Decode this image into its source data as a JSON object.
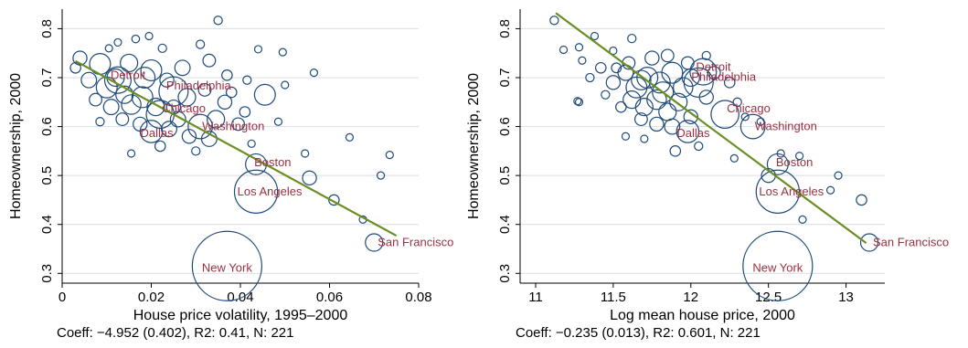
{
  "colors": {
    "bubble": "#1f4a7a",
    "fit_line": "#6b8e23",
    "city_label": "#9b3040",
    "grid": "#d9dee6"
  },
  "chart_data": [
    {
      "type": "scatter",
      "xlabel": "House price volatility, 1995–2000",
      "ylabel": "Homeownership, 2000",
      "xlim": [
        0,
        0.08
      ],
      "ylim": [
        0.28,
        0.84
      ],
      "xticks": [
        "0",
        "0.02",
        "0.04",
        "0.06",
        "0.08"
      ],
      "yticks": [
        "0.3",
        "0.4",
        "0.5",
        "0.6",
        "0.7",
        "0.8"
      ],
      "grid": "horizontal",
      "caption": "Coeff: −4.952 (0.402), R2: 0.41, N: 221",
      "fit_line": {
        "x": [
          0.003,
          0.075
        ],
        "y": [
          0.734,
          0.377
        ]
      },
      "labeled_points": [
        {
          "label": "New York",
          "x": 0.037,
          "y": 0.315,
          "size": 1.0
        },
        {
          "label": "Los Angeles",
          "x": 0.0435,
          "y": 0.467,
          "size": 0.62
        },
        {
          "label": "Boston",
          "x": 0.0435,
          "y": 0.523,
          "size": 0.3
        },
        {
          "label": "San Francisco",
          "x": 0.07,
          "y": 0.363,
          "size": 0.25
        },
        {
          "label": "Chicago",
          "x": 0.022,
          "y": 0.625,
          "size": 0.4
        },
        {
          "label": "Washington",
          "x": 0.031,
          "y": 0.6,
          "size": 0.35
        },
        {
          "label": "Dallas",
          "x": 0.02,
          "y": 0.59,
          "size": 0.32
        },
        {
          "label": "Detroit",
          "x": 0.0125,
          "y": 0.695,
          "size": 0.38
        },
        {
          "label": "Philadelphia",
          "x": 0.025,
          "y": 0.672,
          "size": 0.42
        }
      ],
      "points": [
        {
          "x": 0.035,
          "y": 0.817,
          "size": 0.12
        },
        {
          "x": 0.0195,
          "y": 0.785,
          "size": 0.1
        },
        {
          "x": 0.0165,
          "y": 0.779,
          "size": 0.11
        },
        {
          "x": 0.0125,
          "y": 0.772,
          "size": 0.1
        },
        {
          "x": 0.031,
          "y": 0.768,
          "size": 0.12
        },
        {
          "x": 0.044,
          "y": 0.758,
          "size": 0.1
        },
        {
          "x": 0.0495,
          "y": 0.752,
          "size": 0.07
        },
        {
          "x": 0.004,
          "y": 0.74,
          "size": 0.2
        },
        {
          "x": 0.0085,
          "y": 0.728,
          "size": 0.3
        },
        {
          "x": 0.015,
          "y": 0.73,
          "size": 0.25
        },
        {
          "x": 0.02,
          "y": 0.715,
          "size": 0.3
        },
        {
          "x": 0.027,
          "y": 0.72,
          "size": 0.22
        },
        {
          "x": 0.033,
          "y": 0.735,
          "size": 0.18
        },
        {
          "x": 0.037,
          "y": 0.705,
          "size": 0.15
        },
        {
          "x": 0.0415,
          "y": 0.695,
          "size": 0.12
        },
        {
          "x": 0.0565,
          "y": 0.71,
          "size": 0.08
        },
        {
          "x": 0.05,
          "y": 0.685,
          "size": 0.1
        },
        {
          "x": 0.0455,
          "y": 0.665,
          "size": 0.3
        },
        {
          "x": 0.006,
          "y": 0.695,
          "size": 0.22
        },
        {
          "x": 0.01,
          "y": 0.68,
          "size": 0.3
        },
        {
          "x": 0.014,
          "y": 0.665,
          "size": 0.25
        },
        {
          "x": 0.018,
          "y": 0.66,
          "size": 0.3
        },
        {
          "x": 0.0235,
          "y": 0.695,
          "size": 0.2
        },
        {
          "x": 0.028,
          "y": 0.66,
          "size": 0.25
        },
        {
          "x": 0.032,
          "y": 0.675,
          "size": 0.18
        },
        {
          "x": 0.0365,
          "y": 0.65,
          "size": 0.2
        },
        {
          "x": 0.041,
          "y": 0.63,
          "size": 0.15
        },
        {
          "x": 0.0075,
          "y": 0.655,
          "size": 0.18
        },
        {
          "x": 0.011,
          "y": 0.64,
          "size": 0.22
        },
        {
          "x": 0.0155,
          "y": 0.645,
          "size": 0.28
        },
        {
          "x": 0.021,
          "y": 0.64,
          "size": 0.25
        },
        {
          "x": 0.026,
          "y": 0.615,
          "size": 0.22
        },
        {
          "x": 0.0345,
          "y": 0.615,
          "size": 0.25
        },
        {
          "x": 0.0395,
          "y": 0.605,
          "size": 0.18
        },
        {
          "x": 0.0085,
          "y": 0.61,
          "size": 0.12
        },
        {
          "x": 0.0135,
          "y": 0.615,
          "size": 0.18
        },
        {
          "x": 0.0175,
          "y": 0.605,
          "size": 0.2
        },
        {
          "x": 0.024,
          "y": 0.595,
          "size": 0.22
        },
        {
          "x": 0.0285,
          "y": 0.58,
          "size": 0.2
        },
        {
          "x": 0.033,
          "y": 0.575,
          "size": 0.22
        },
        {
          "x": 0.0155,
          "y": 0.545,
          "size": 0.1
        },
        {
          "x": 0.022,
          "y": 0.56,
          "size": 0.15
        },
        {
          "x": 0.03,
          "y": 0.55,
          "size": 0.12
        },
        {
          "x": 0.0425,
          "y": 0.565,
          "size": 0.1
        },
        {
          "x": 0.0545,
          "y": 0.545,
          "size": 0.08
        },
        {
          "x": 0.0645,
          "y": 0.578,
          "size": 0.1
        },
        {
          "x": 0.0735,
          "y": 0.542,
          "size": 0.09
        },
        {
          "x": 0.0715,
          "y": 0.5,
          "size": 0.08
        },
        {
          "x": 0.0555,
          "y": 0.495,
          "size": 0.2
        },
        {
          "x": 0.061,
          "y": 0.45,
          "size": 0.15
        },
        {
          "x": 0.0675,
          "y": 0.41,
          "size": 0.07
        },
        {
          "x": 0.003,
          "y": 0.72,
          "size": 0.15
        },
        {
          "x": 0.0185,
          "y": 0.7,
          "size": 0.3
        },
        {
          "x": 0.012,
          "y": 0.7,
          "size": 0.25
        },
        {
          "x": 0.025,
          "y": 0.64,
          "size": 0.2
        },
        {
          "x": 0.0105,
          "y": 0.76,
          "size": 0.1
        },
        {
          "x": 0.0225,
          "y": 0.76,
          "size": 0.12
        },
        {
          "x": 0.038,
          "y": 0.67,
          "size": 0.15
        },
        {
          "x": 0.0485,
          "y": 0.61,
          "size": 0.09
        }
      ]
    },
    {
      "type": "scatter",
      "xlabel": "Log mean house price, 2000",
      "ylabel": "Homeownership, 2000",
      "xlim": [
        10.9,
        13.25
      ],
      "ylim": [
        0.28,
        0.84
      ],
      "xticks": [
        "11",
        "11.5",
        "12",
        "12.5",
        "13"
      ],
      "yticks": [
        "0.3",
        "0.4",
        "0.5",
        "0.6",
        "0.7",
        "0.8"
      ],
      "grid": "horizontal",
      "caption": "Coeff: −0.235 (0.013), R2: 0.601, N: 221",
      "fit_line": {
        "x": [
          11.13,
          13.13
        ],
        "y": [
          0.832,
          0.362
        ]
      },
      "labeled_points": [
        {
          "label": "New York",
          "x": 12.56,
          "y": 0.315,
          "size": 1.0
        },
        {
          "label": "Los Angeles",
          "x": 12.56,
          "y": 0.467,
          "size": 0.62
        },
        {
          "label": "Boston",
          "x": 12.56,
          "y": 0.523,
          "size": 0.3
        },
        {
          "label": "San Francisco",
          "x": 13.15,
          "y": 0.363,
          "size": 0.25
        },
        {
          "label": "Chicago",
          "x": 12.22,
          "y": 0.625,
          "size": 0.4
        },
        {
          "label": "Washington",
          "x": 12.4,
          "y": 0.6,
          "size": 0.35
        },
        {
          "label": "Dallas",
          "x": 11.98,
          "y": 0.59,
          "size": 0.32
        },
        {
          "label": "Detroit",
          "x": 12.08,
          "y": 0.712,
          "size": 0.38
        },
        {
          "label": "Philadelphia",
          "x": 12.05,
          "y": 0.69,
          "size": 0.42
        }
      ],
      "points": [
        {
          "x": 11.12,
          "y": 0.817,
          "size": 0.12
        },
        {
          "x": 11.18,
          "y": 0.757,
          "size": 0.08
        },
        {
          "x": 11.28,
          "y": 0.762,
          "size": 0.1
        },
        {
          "x": 11.38,
          "y": 0.785,
          "size": 0.1
        },
        {
          "x": 11.62,
          "y": 0.78,
          "size": 0.12
        },
        {
          "x": 11.5,
          "y": 0.755,
          "size": 0.09
        },
        {
          "x": 11.3,
          "y": 0.735,
          "size": 0.1
        },
        {
          "x": 11.27,
          "y": 0.652,
          "size": 0.07
        },
        {
          "x": 11.35,
          "y": 0.7,
          "size": 0.12
        },
        {
          "x": 11.42,
          "y": 0.72,
          "size": 0.15
        },
        {
          "x": 11.5,
          "y": 0.69,
          "size": 0.2
        },
        {
          "x": 11.58,
          "y": 0.71,
          "size": 0.22
        },
        {
          "x": 11.65,
          "y": 0.68,
          "size": 0.3
        },
        {
          "x": 11.72,
          "y": 0.7,
          "size": 0.3
        },
        {
          "x": 11.8,
          "y": 0.69,
          "size": 0.3
        },
        {
          "x": 11.88,
          "y": 0.71,
          "size": 0.3
        },
        {
          "x": 11.95,
          "y": 0.68,
          "size": 0.28
        },
        {
          "x": 11.62,
          "y": 0.655,
          "size": 0.25
        },
        {
          "x": 11.7,
          "y": 0.64,
          "size": 0.25
        },
        {
          "x": 11.78,
          "y": 0.655,
          "size": 0.28
        },
        {
          "x": 11.85,
          "y": 0.63,
          "size": 0.25
        },
        {
          "x": 11.92,
          "y": 0.65,
          "size": 0.25
        },
        {
          "x": 11.55,
          "y": 0.64,
          "size": 0.15
        },
        {
          "x": 11.45,
          "y": 0.665,
          "size": 0.12
        },
        {
          "x": 11.68,
          "y": 0.615,
          "size": 0.18
        },
        {
          "x": 11.78,
          "y": 0.605,
          "size": 0.2
        },
        {
          "x": 11.88,
          "y": 0.6,
          "size": 0.22
        },
        {
          "x": 12.0,
          "y": 0.62,
          "size": 0.2
        },
        {
          "x": 12.1,
          "y": 0.66,
          "size": 0.2
        },
        {
          "x": 12.15,
          "y": 0.71,
          "size": 0.18
        },
        {
          "x": 12.25,
          "y": 0.69,
          "size": 0.15
        },
        {
          "x": 12.3,
          "y": 0.65,
          "size": 0.12
        },
        {
          "x": 11.58,
          "y": 0.58,
          "size": 0.08
        },
        {
          "x": 11.7,
          "y": 0.575,
          "size": 0.1
        },
        {
          "x": 11.9,
          "y": 0.55,
          "size": 0.15
        },
        {
          "x": 12.05,
          "y": 0.56,
          "size": 0.12
        },
        {
          "x": 12.28,
          "y": 0.535,
          "size": 0.08
        },
        {
          "x": 12.58,
          "y": 0.545,
          "size": 0.09
        },
        {
          "x": 12.7,
          "y": 0.54,
          "size": 0.08
        },
        {
          "x": 12.95,
          "y": 0.5,
          "size": 0.07
        },
        {
          "x": 12.5,
          "y": 0.5,
          "size": 0.2
        },
        {
          "x": 12.9,
          "y": 0.47,
          "size": 0.07
        },
        {
          "x": 13.1,
          "y": 0.45,
          "size": 0.15
        },
        {
          "x": 12.72,
          "y": 0.41,
          "size": 0.07
        },
        {
          "x": 11.28,
          "y": 0.65,
          "size": 0.07
        },
        {
          "x": 11.6,
          "y": 0.73,
          "size": 0.18
        },
        {
          "x": 11.75,
          "y": 0.74,
          "size": 0.2
        },
        {
          "x": 11.85,
          "y": 0.745,
          "size": 0.18
        },
        {
          "x": 11.98,
          "y": 0.73,
          "size": 0.18
        },
        {
          "x": 12.1,
          "y": 0.745,
          "size": 0.12
        },
        {
          "x": 11.82,
          "y": 0.67,
          "size": 0.3
        },
        {
          "x": 11.68,
          "y": 0.695,
          "size": 0.28
        },
        {
          "x": 12.35,
          "y": 0.62,
          "size": 0.1
        },
        {
          "x": 12.45,
          "y": 0.61,
          "size": 0.09
        },
        {
          "x": 12.0,
          "y": 0.7,
          "size": 0.25
        },
        {
          "x": 11.52,
          "y": 0.72,
          "size": 0.14
        }
      ]
    }
  ]
}
